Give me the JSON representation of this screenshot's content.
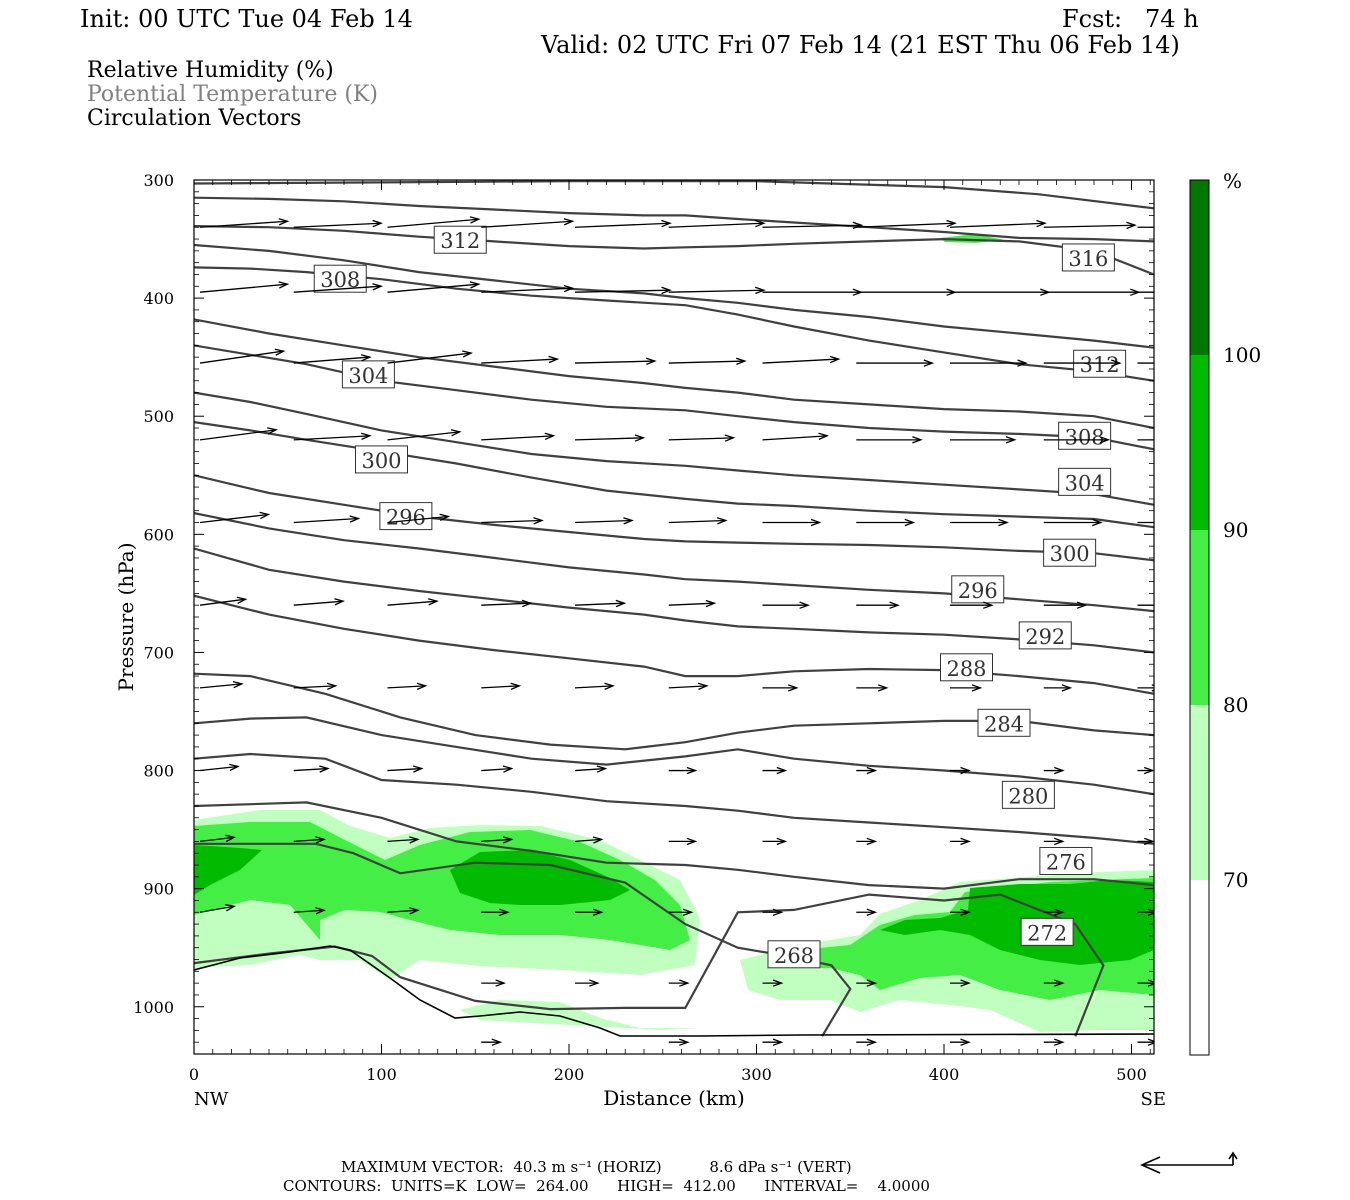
{
  "header": {
    "init": "Init: 00 UTC Tue 04 Feb 14",
    "fcst": "Fcst:   74 h",
    "valid": "Valid: 02 UTC Fri 07 Feb 14 (21 EST Thu 06 Feb 14)"
  },
  "legend": {
    "rh": "Relative Humidity (%)",
    "theta": "Potential Temperature (K)",
    "vectors": "Circulation Vectors"
  },
  "footer": {
    "max_vector": "MAXIMUM VECTOR:  40.3 m s⁻¹ (HORIZ)          8.6 dPa s⁻¹ (VERT)",
    "contours": "CONTOURS:  UNITS=K  LOW=  264.00      HIGH=  412.00      INTERVAL=    4.0000"
  },
  "colors": {
    "rh_70_80": "#c0ffc0",
    "rh_80_90": "#44ee44",
    "rh_90_100": "#00bb00",
    "rh_100": "#007700",
    "theta_line": "#404040",
    "terrain": "#000000"
  },
  "chart_data": {
    "type": "contour-cross-section",
    "xlabel": "Distance (km)",
    "ylabel": "Pressure (hPa)",
    "xlim": [
      0,
      512
    ],
    "ylim": [
      1040,
      300
    ],
    "x_ticks": [
      0,
      100,
      200,
      300,
      400,
      500
    ],
    "y_ticks": [
      300,
      400,
      500,
      600,
      700,
      800,
      900,
      1000
    ],
    "x_end_labels": {
      "left": "NW",
      "right": "SE"
    },
    "colorbar": {
      "unit": "%",
      "levels": [
        70,
        80,
        90,
        100
      ]
    },
    "theta_contours": [
      {
        "label": "268",
        "lx": 320,
        "lp": 956,
        "pts": [
          [
            0,
            862
          ],
          [
            65,
            862
          ],
          [
            85,
            870
          ],
          [
            110,
            887
          ],
          [
            150,
            878
          ],
          [
            190,
            880
          ],
          [
            230,
            895
          ],
          [
            262,
            930
          ],
          [
            290,
            950
          ],
          [
            320,
            958
          ],
          [
            340,
            965
          ],
          [
            350,
            985
          ],
          [
            335,
            1025
          ]
        ]
      },
      {
        "label": "272",
        "lx": 455,
        "lp": 937,
        "pts": [
          [
            0,
            963
          ],
          [
            40,
            955
          ],
          [
            75,
            949
          ],
          [
            95,
            957
          ],
          [
            110,
            975
          ],
          [
            150,
            995
          ],
          [
            190,
            1002
          ],
          [
            230,
            1001
          ],
          [
            262,
            1001
          ],
          [
            290,
            920
          ],
          [
            320,
            918
          ],
          [
            360,
            905
          ],
          [
            400,
            910
          ],
          [
            430,
            905
          ],
          [
            470,
            930
          ],
          [
            485,
            965
          ],
          [
            470,
            1025
          ]
        ]
      },
      {
        "label": "276",
        "lx": 465,
        "lp": 877,
        "pts": [
          [
            0,
            830
          ],
          [
            60,
            827
          ],
          [
            100,
            840
          ],
          [
            140,
            860
          ],
          [
            180,
            868
          ],
          [
            220,
            878
          ],
          [
            262,
            880
          ],
          [
            290,
            884
          ],
          [
            320,
            890
          ],
          [
            360,
            897
          ],
          [
            400,
            900
          ],
          [
            440,
            892
          ],
          [
            480,
            892
          ],
          [
            512,
            897
          ]
        ]
      },
      {
        "label": "280",
        "lx": 445,
        "lp": 821,
        "pts": [
          [
            0,
            790
          ],
          [
            30,
            786
          ],
          [
            70,
            790
          ],
          [
            100,
            808
          ],
          [
            140,
            812
          ],
          [
            180,
            818
          ],
          [
            220,
            826
          ],
          [
            262,
            830
          ],
          [
            290,
            834
          ],
          [
            320,
            840
          ],
          [
            360,
            844
          ],
          [
            400,
            848
          ],
          [
            440,
            852
          ],
          [
            480,
            857
          ],
          [
            512,
            862
          ]
        ]
      },
      {
        "label": "284",
        "lx": 432,
        "lp": 760,
        "pts": [
          [
            0,
            760
          ],
          [
            30,
            756
          ],
          [
            60,
            755
          ],
          [
            100,
            770
          ],
          [
            140,
            780
          ],
          [
            180,
            790
          ],
          [
            220,
            795
          ],
          [
            262,
            788
          ],
          [
            290,
            782
          ],
          [
            320,
            790
          ],
          [
            360,
            796
          ],
          [
            400,
            800
          ],
          [
            440,
            805
          ],
          [
            480,
            812
          ],
          [
            512,
            820
          ]
        ]
      },
      {
        "label": "288",
        "lx": 412,
        "lp": 713,
        "pts": [
          [
            0,
            718
          ],
          [
            30,
            720
          ],
          [
            70,
            735
          ],
          [
            110,
            755
          ],
          [
            150,
            770
          ],
          [
            190,
            778
          ],
          [
            230,
            782
          ],
          [
            262,
            776
          ],
          [
            290,
            768
          ],
          [
            320,
            762
          ],
          [
            360,
            760
          ],
          [
            400,
            758
          ],
          [
            440,
            758
          ],
          [
            480,
            766
          ],
          [
            512,
            770
          ]
        ]
      },
      {
        "label": "292",
        "lx": 454,
        "lp": 686,
        "pts": [
          [
            0,
            652
          ],
          [
            40,
            668
          ],
          [
            80,
            680
          ],
          [
            120,
            690
          ],
          [
            160,
            698
          ],
          [
            200,
            705
          ],
          [
            240,
            712
          ],
          [
            262,
            720
          ],
          [
            290,
            720
          ],
          [
            320,
            716
          ],
          [
            360,
            714
          ],
          [
            400,
            715
          ],
          [
            440,
            720
          ],
          [
            480,
            726
          ],
          [
            512,
            735
          ]
        ]
      },
      {
        "label": "296",
        "lx": 418,
        "lp": 647,
        "pts": [
          [
            0,
            612
          ],
          [
            40,
            630
          ],
          [
            80,
            640
          ],
          [
            120,
            648
          ],
          [
            160,
            655
          ],
          [
            200,
            662
          ],
          [
            240,
            668
          ],
          [
            262,
            673
          ],
          [
            290,
            678
          ],
          [
            320,
            680
          ],
          [
            360,
            683
          ],
          [
            400,
            685
          ],
          [
            440,
            689
          ],
          [
            480,
            694
          ],
          [
            512,
            700
          ]
        ]
      },
      {
        "label": "300",
        "lx": 467,
        "lp": 616,
        "pts": [
          [
            0,
            582
          ],
          [
            40,
            595
          ],
          [
            80,
            605
          ],
          [
            120,
            612
          ],
          [
            160,
            620
          ],
          [
            200,
            628
          ],
          [
            240,
            634
          ],
          [
            262,
            638
          ],
          [
            290,
            640
          ],
          [
            320,
            643
          ],
          [
            360,
            647
          ],
          [
            400,
            650
          ],
          [
            440,
            655
          ],
          [
            480,
            660
          ],
          [
            512,
            665
          ]
        ]
      },
      {
        "label": "296",
        "lx": 113,
        "lp": 585,
        "pts": [
          [
            0,
            550
          ],
          [
            40,
            565
          ],
          [
            80,
            575
          ],
          [
            120,
            585
          ],
          [
            160,
            592
          ],
          [
            200,
            598
          ],
          [
            240,
            604
          ],
          [
            262,
            606
          ],
          [
            290,
            607
          ],
          [
            320,
            608
          ],
          [
            360,
            609
          ],
          [
            400,
            611
          ],
          [
            440,
            614
          ],
          [
            480,
            616
          ],
          [
            512,
            622
          ]
        ]
      },
      {
        "label": "304",
        "lx": 475,
        "lp": 556,
        "pts": [
          [
            0,
            505
          ],
          [
            30,
            512
          ],
          [
            60,
            520
          ],
          [
            100,
            530
          ],
          [
            140,
            540
          ],
          [
            180,
            552
          ],
          [
            220,
            563
          ],
          [
            262,
            570
          ],
          [
            290,
            574
          ],
          [
            320,
            576
          ],
          [
            360,
            580
          ],
          [
            400,
            583
          ],
          [
            440,
            585
          ],
          [
            480,
            587
          ],
          [
            512,
            594
          ]
        ]
      },
      {
        "label": "300",
        "lx": 100,
        "lp": 537,
        "pts": [
          [
            0,
            480
          ],
          [
            30,
            488
          ],
          [
            60,
            498
          ],
          [
            100,
            512
          ],
          [
            140,
            522
          ],
          [
            180,
            532
          ],
          [
            220,
            538
          ],
          [
            262,
            542
          ],
          [
            290,
            546
          ],
          [
            320,
            550
          ],
          [
            360,
            554
          ],
          [
            400,
            558
          ],
          [
            440,
            562
          ],
          [
            480,
            566
          ],
          [
            512,
            575
          ]
        ]
      },
      {
        "label": "308",
        "lx": 475,
        "lp": 517,
        "pts": [
          [
            0,
            440
          ],
          [
            30,
            448
          ],
          [
            60,
            456
          ],
          [
            100,
            470
          ],
          [
            140,
            478
          ],
          [
            180,
            486
          ],
          [
            220,
            492
          ],
          [
            262,
            495
          ],
          [
            290,
            500
          ],
          [
            320,
            505
          ],
          [
            360,
            510
          ],
          [
            400,
            513
          ],
          [
            440,
            515
          ],
          [
            480,
            518
          ],
          [
            512,
            528
          ]
        ]
      },
      {
        "label": "304",
        "lx": 93,
        "lp": 465,
        "pts": [
          [
            0,
            418
          ],
          [
            40,
            430
          ],
          [
            80,
            440
          ],
          [
            120,
            450
          ],
          [
            160,
            458
          ],
          [
            200,
            466
          ],
          [
            240,
            472
          ],
          [
            262,
            476
          ],
          [
            290,
            480
          ],
          [
            320,
            486
          ],
          [
            360,
            490
          ],
          [
            400,
            494
          ],
          [
            440,
            496
          ],
          [
            480,
            500
          ],
          [
            512,
            510
          ]
        ]
      },
      {
        "label": "312",
        "lx": 483,
        "lp": 456,
        "pts": [
          [
            0,
            374
          ],
          [
            30,
            375
          ],
          [
            60,
            378
          ],
          [
            100,
            384
          ],
          [
            140,
            392
          ],
          [
            180,
            398
          ],
          [
            220,
            402
          ],
          [
            262,
            406
          ],
          [
            290,
            414
          ],
          [
            320,
            424
          ],
          [
            360,
            436
          ],
          [
            400,
            446
          ],
          [
            440,
            456
          ],
          [
            480,
            462
          ],
          [
            512,
            470
          ]
        ]
      },
      {
        "label": "308",
        "lx": 78,
        "lp": 384,
        "pts": [
          [
            0,
            355
          ],
          [
            40,
            360
          ],
          [
            80,
            368
          ],
          [
            120,
            378
          ],
          [
            160,
            385
          ],
          [
            200,
            392
          ],
          [
            240,
            396
          ],
          [
            262,
            400
          ],
          [
            290,
            404
          ],
          [
            320,
            410
          ],
          [
            360,
            416
          ],
          [
            400,
            424
          ],
          [
            440,
            430
          ],
          [
            480,
            436
          ],
          [
            512,
            442
          ]
        ]
      },
      {
        "label": "316",
        "lx": 477,
        "lp": 366,
        "pts": [
          [
            0,
            339
          ],
          [
            40,
            340
          ],
          [
            80,
            343
          ],
          [
            120,
            348
          ],
          [
            160,
            352
          ],
          [
            200,
            356
          ],
          [
            240,
            358
          ],
          [
            262,
            357
          ],
          [
            290,
            356
          ],
          [
            320,
            354
          ],
          [
            360,
            352
          ],
          [
            400,
            350
          ],
          [
            440,
            352
          ],
          [
            480,
            360
          ],
          [
            512,
            380
          ]
        ]
      },
      {
        "label": "312",
        "lx": 142,
        "lp": 351,
        "pts": [
          [
            0,
            315
          ],
          [
            40,
            316
          ],
          [
            80,
            318
          ],
          [
            120,
            322
          ],
          [
            160,
            325
          ],
          [
            200,
            328
          ],
          [
            240,
            330
          ],
          [
            262,
            330
          ],
          [
            290,
            333
          ],
          [
            320,
            336
          ],
          [
            360,
            340
          ],
          [
            400,
            344
          ],
          [
            440,
            349
          ],
          [
            480,
            350
          ],
          [
            512,
            352
          ]
        ]
      },
      {
        "label": "",
        "lx": null,
        "lp": null,
        "pts": [
          [
            0,
            303
          ],
          [
            100,
            302
          ],
          [
            200,
            301
          ],
          [
            300,
            301
          ],
          [
            400,
            306
          ],
          [
            450,
            312
          ],
          [
            512,
            324
          ]
        ]
      }
    ]
  }
}
